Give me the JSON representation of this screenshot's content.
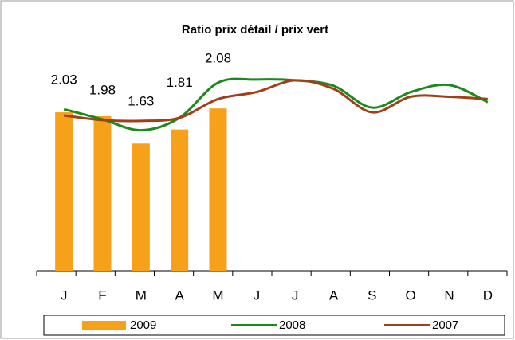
{
  "chart_data": {
    "type": "combo",
    "title": "Ratio prix détail / prix vert",
    "categories": [
      "J",
      "F",
      "M",
      "A",
      "M",
      "J",
      "J",
      "A",
      "S",
      "O",
      "N",
      "D"
    ],
    "series": [
      {
        "name": "2009",
        "type": "bar",
        "color": "#f7a11a",
        "values": [
          2.03,
          1.98,
          1.63,
          1.81,
          2.08,
          null,
          null,
          null,
          null,
          null,
          null,
          null
        ]
      },
      {
        "name": "2008",
        "type": "line",
        "color": "#1a8a1a",
        "values": [
          2.07,
          1.94,
          1.8,
          1.96,
          2.41,
          2.45,
          2.44,
          2.37,
          2.09,
          2.29,
          2.38,
          2.16
        ]
      },
      {
        "name": "2007",
        "type": "line",
        "color": "#a0401a",
        "values": [
          1.99,
          1.93,
          1.92,
          1.96,
          2.2,
          2.29,
          2.44,
          2.33,
          2.03,
          2.23,
          2.23,
          2.2
        ]
      }
    ]
  }
}
